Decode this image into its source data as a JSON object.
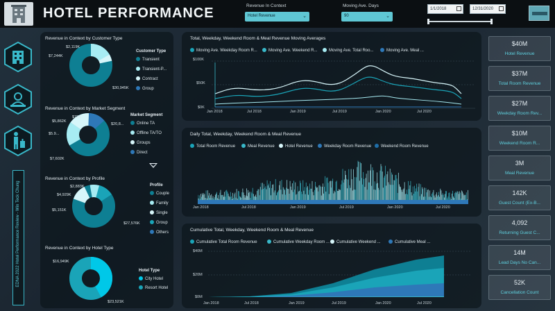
{
  "header": {
    "title": "HOTEL PERFORMANCE",
    "revenue_context_label": "Revenue In Context",
    "revenue_context_value": "Hotel Revenue",
    "moving_avg_label": "Moving Ave. Days",
    "moving_avg_value": "90",
    "date_start": "1/1/2018",
    "date_end": "12/31/2020"
  },
  "side_text": "EDNA 2022 Hotel Performance Review - Win Teck Chung",
  "icons": [
    "hotel-building-icon",
    "receptionist-icon",
    "traveler-luggage-icon",
    "hamburger-menu-icon"
  ],
  "colors": {
    "accent": "#39b8c9",
    "light_cyan": "#a7ecf3",
    "dark_teal": "#0e7f93",
    "mid_teal": "#1aa4b8",
    "blue": "#2e78b8"
  },
  "donuts": {
    "customer_type": {
      "title": "Revenue in Context by Customer Type",
      "legend_title": "Customer Type",
      "legend": [
        "Transient",
        "Transient-P...",
        "Contract",
        "Group"
      ],
      "labels": [
        "$2,119K",
        "$7,244K",
        "$30,945K"
      ]
    },
    "market_segment": {
      "title": "Revenue in Context by Market Segment",
      "legend_title": "Market Segment",
      "legend": [
        "Online TA",
        "Offline TA/TO",
        "Groups",
        "Direct"
      ],
      "labels": [
        "$72K",
        "$5,862K",
        "$5.9...",
        "$7,602K",
        "$20,8..."
      ]
    },
    "profile": {
      "title": "Revenue in Context by Profile",
      "legend_title": "Profile",
      "legend": [
        "Couple",
        "Family",
        "Single",
        "Group",
        "Others"
      ],
      "labels": [
        "$2,883K",
        "$4,929K",
        "$5,151K",
        "$27,576K"
      ]
    },
    "hotel_type": {
      "title": "Revenue in Context by Hotel Type",
      "legend_title": "Hotel Type",
      "legend": [
        "City Hotel",
        "Resort Hotel"
      ],
      "labels": [
        "$16,949K",
        "$23,521K"
      ]
    }
  },
  "charts": {
    "moving_avg": {
      "title": "Total, Weekday, Weekend Room & Meal Revenue Moving Averages",
      "legend": [
        "Moving Ave. Weekday Room R...",
        "Moving Ave. Weekend R...",
        "Moving Ave. Total Roo...",
        "Moving Ave. Meal ..."
      ],
      "y_ticks": [
        "$100K",
        "$50K",
        "$0K"
      ],
      "x_ticks": [
        "Jan 2018",
        "Jul 2018",
        "Jan 2019",
        "Jul 2019",
        "Jan 2020",
        "Jul 2020"
      ]
    },
    "daily": {
      "title": "Daily Total, Weekday, Weekend Room & Meal Revenue",
      "legend": [
        "Total Room Revenue",
        "Meal Revenue",
        "Hotel Revenue",
        "Weekday Room Revenue",
        "Weekend Room Revenue"
      ],
      "x_ticks": [
        "Jan 2018",
        "Jul 2018",
        "Jan 2019",
        "Jul 2019",
        "Jan 2020",
        "Jul 2020"
      ]
    },
    "cumulative": {
      "title": "Cumulative Total, Weekday, Weekend Room & Meal Revenue",
      "legend": [
        "Cumulative Total Room Revenue",
        "Cumulative Weekday Room ...",
        "Cumulative Weekend ...",
        "Cumulative Meal ..."
      ],
      "y_ticks": [
        "$40M",
        "$20M",
        "$0M"
      ],
      "x_ticks": [
        "Jan 2018",
        "Jul 2018",
        "Jan 2019",
        "Jul 2019",
        "Jan 2020",
        "Jul 2020"
      ]
    }
  },
  "kpis": [
    {
      "value": "$40M",
      "label": "Hotel Revenue"
    },
    {
      "value": "$37M",
      "label": "Total Room Revenue"
    },
    {
      "value": "$27M",
      "label": "Weekday Room Rev..."
    },
    {
      "value": "$10M",
      "label": "Weekend Room R..."
    },
    {
      "value": "3M",
      "label": "Meal Revenue"
    },
    {
      "value": "142K",
      "label": "Guest Count (Ex-B..."
    },
    {
      "value": "4,092",
      "label": "Returning Guest C..."
    },
    {
      "value": "14M",
      "label": "Lead Days No Can..."
    },
    {
      "value": "52K",
      "label": "Cancellation Count"
    }
  ]
}
